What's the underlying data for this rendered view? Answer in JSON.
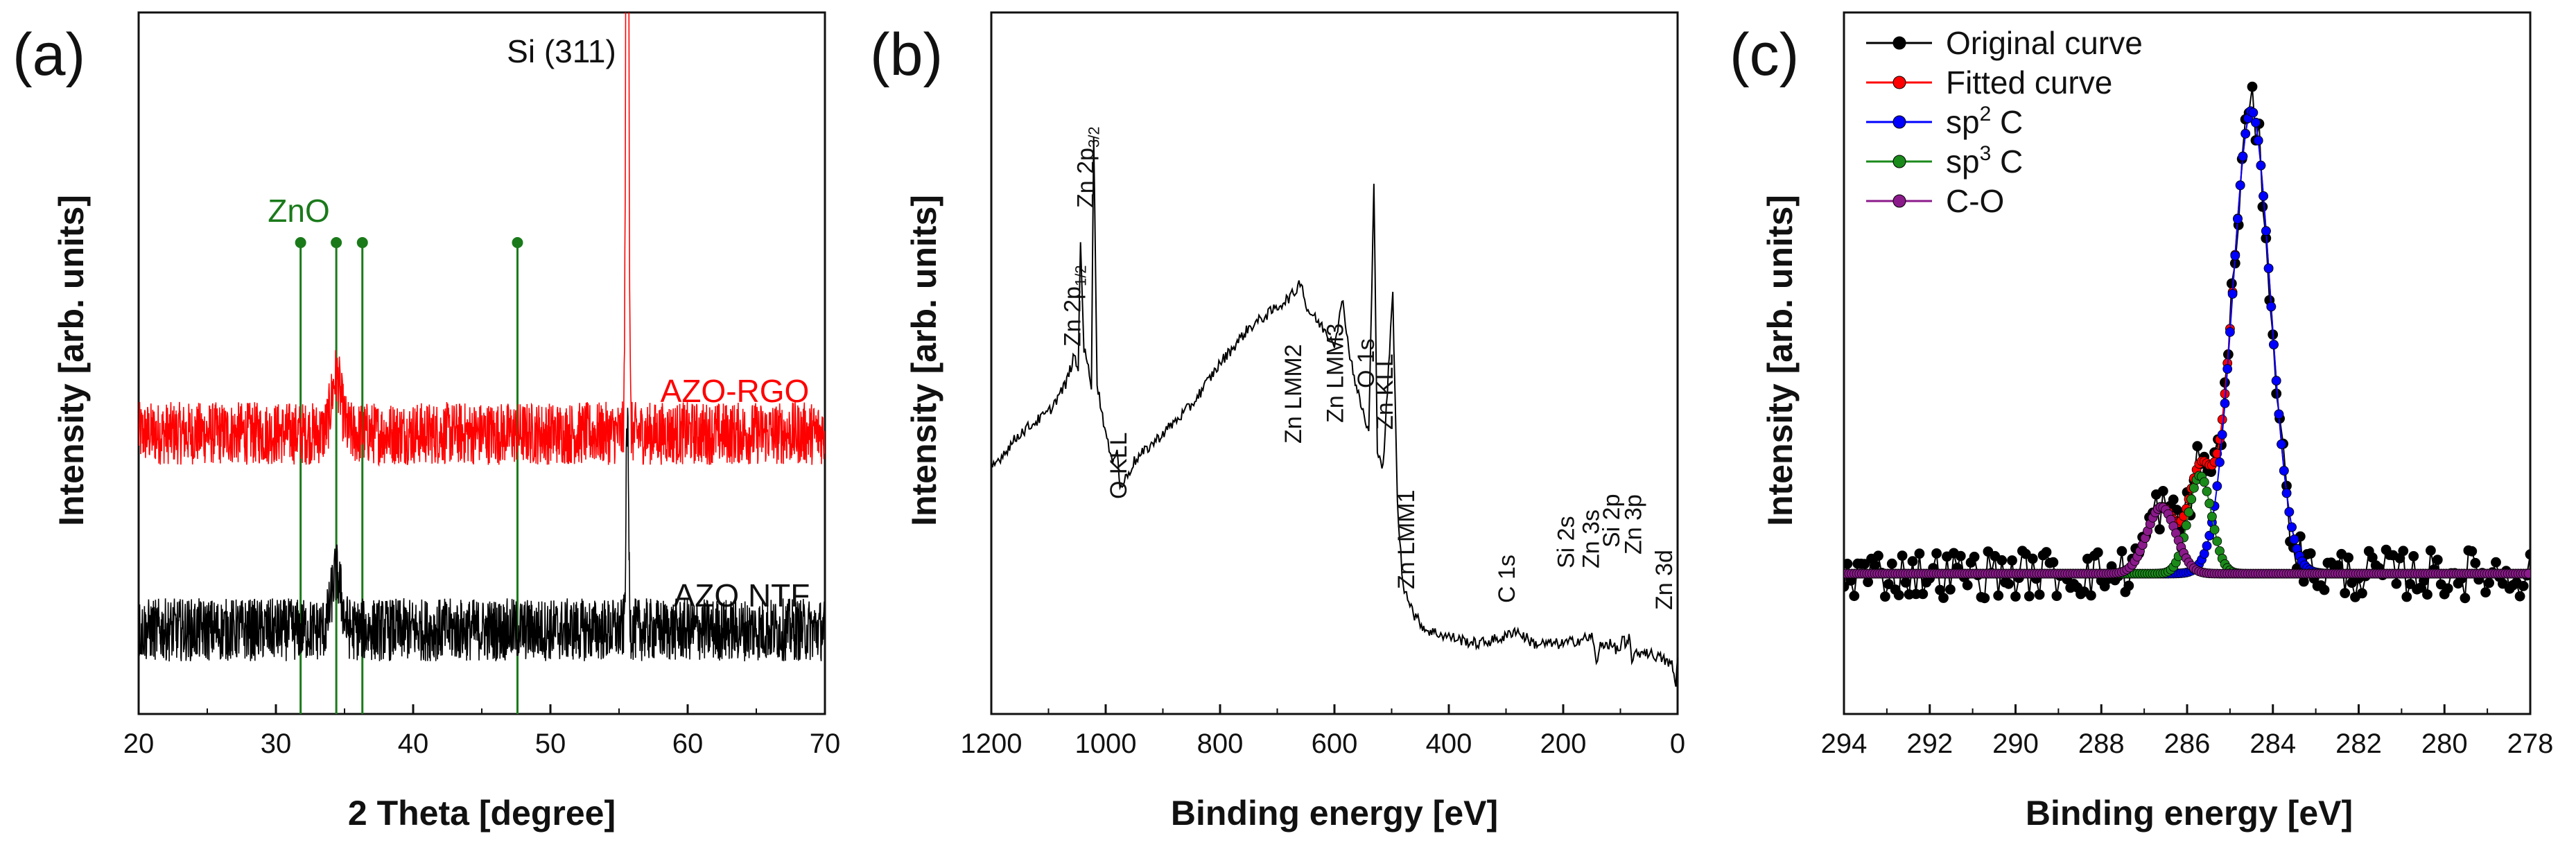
{
  "chart_data": [
    {
      "type": "line",
      "panel": "(a)",
      "xlabel": "2 Theta [degree]",
      "ylabel": "Intensity [arb. units]",
      "xlim": [
        20,
        70
      ],
      "xticks": [
        20,
        30,
        40,
        50,
        60,
        70
      ],
      "ylim": [
        0,
        100
      ],
      "series": [
        {
          "name": "AZO-RGO",
          "color": "#ff0000",
          "baseline": 40,
          "noise": 4.5,
          "peaks": [
            {
              "x": 34.4,
              "h": 8,
              "w": 0.5
            },
            {
              "x": 55.6,
              "h": 140,
              "w": 0.13
            }
          ]
        },
        {
          "name": "AZO NTF",
          "color": "#000000",
          "baseline": 12,
          "noise": 4.5,
          "peaks": [
            {
              "x": 34.4,
              "h": 8,
              "w": 0.5
            },
            {
              "x": 55.6,
              "h": 30,
              "w": 0.13
            }
          ]
        }
      ],
      "reference_lines": {
        "label": "ZnO",
        "color": "#1a7a1a",
        "positions": [
          31.8,
          34.4,
          36.3,
          47.6
        ]
      },
      "annotations": [
        {
          "text": "Si (311)",
          "x": 55.6
        },
        {
          "text": "AZO-RGO"
        },
        {
          "text": "AZO NTF"
        }
      ]
    },
    {
      "type": "line",
      "panel": "(b)",
      "xlabel": "Binding energy [eV]",
      "ylabel": "Intensity [arb. units]",
      "xlim": [
        1200,
        0
      ],
      "xticks": [
        1200,
        1000,
        800,
        600,
        400,
        200,
        0
      ],
      "ylim": [
        0,
        100
      ],
      "series": [
        {
          "name": "XPS survey",
          "color": "#000000",
          "points": [
            [
              1200,
              35
            ],
            [
              1150,
              40
            ],
            [
              1100,
              43
            ],
            [
              1070,
              47
            ],
            [
              1055,
              51
            ],
            [
              1048,
              49
            ],
            [
              1044,
              68
            ],
            [
              1038,
              52
            ],
            [
              1032,
              50
            ],
            [
              1025,
              47
            ],
            [
              1021,
              83
            ],
            [
              1015,
              47
            ],
            [
              1000,
              40
            ],
            [
              990,
              36
            ],
            [
              980,
              38
            ],
            [
              975,
              32
            ],
            [
              950,
              36
            ],
            [
              900,
              40
            ],
            [
              850,
              44
            ],
            [
              800,
              50
            ],
            [
              750,
              55
            ],
            [
              700,
              58
            ],
            [
              670,
              60
            ],
            [
              658,
              62
            ],
            [
              650,
              58
            ],
            [
              640,
              57
            ],
            [
              620,
              55
            ],
            [
              600,
              53
            ],
            [
              585,
              59
            ],
            [
              575,
              52
            ],
            [
              560,
              46
            ],
            [
              540,
              40
            ],
            [
              531,
              75
            ],
            [
              525,
              38
            ],
            [
              515,
              35
            ],
            [
              498,
              60
            ],
            [
              490,
              30
            ],
            [
              480,
              18
            ],
            [
              472,
              17
            ],
            [
              460,
              14
            ],
            [
              440,
              12
            ],
            [
              400,
              11
            ],
            [
              350,
              10
            ],
            [
              300,
              11
            ],
            [
              285,
              12
            ],
            [
              250,
              10
            ],
            [
              200,
              10
            ],
            [
              150,
              11
            ],
            [
              140,
              7
            ],
            [
              135,
              10
            ],
            [
              120,
              10
            ],
            [
              102,
              9
            ],
            [
              95,
              11
            ],
            [
              90,
              9
            ],
            [
              85,
              11
            ],
            [
              80,
              8
            ],
            [
              60,
              9
            ],
            [
              30,
              8
            ],
            [
              10,
              7
            ],
            [
              3,
              4
            ],
            [
              0,
              8
            ]
          ]
        }
      ],
      "annotations": [
        {
          "text": "Zn 2p",
          "sub": "1/2",
          "x": 1044
        },
        {
          "text": "Zn 2p",
          "sub": "3/2",
          "x": 1021
        },
        {
          "text": "O KLL",
          "x": 978
        },
        {
          "text": "Zn LMM2",
          "x": 658
        },
        {
          "text": "Zn LMM3",
          "x": 585
        },
        {
          "text": "O 1s",
          "x": 531
        },
        {
          "text": "Zn KLL",
          "x": 498
        },
        {
          "text": "Zn LMM1",
          "x": 475
        },
        {
          "text": "C 1s",
          "x": 285
        },
        {
          "text": "Si 2s",
          "x": 150
        },
        {
          "text": "Zn 3s",
          "x": 140
        },
        {
          "text": "Si 2p",
          "x": 102
        },
        {
          "text": "Zn 3p",
          "x": 88
        },
        {
          "text": "Zn 3d",
          "x": 10
        }
      ]
    },
    {
      "type": "scatter",
      "panel": "(c)",
      "xlabel": "Binding energy [eV]",
      "ylabel": "Intensity [arb. units]",
      "xlim": [
        294,
        278
      ],
      "xticks": [
        294,
        292,
        290,
        288,
        286,
        284,
        282,
        280,
        278
      ],
      "ylim": [
        0,
        100
      ],
      "baseline": 20,
      "legend_position": "top-left",
      "series": [
        {
          "name": "Original curve",
          "color": "#000000",
          "noise": 3.5,
          "components": [
            "sp2 C",
            "sp3 C",
            "C-O"
          ]
        },
        {
          "name": "Fitted curve",
          "color": "#ff0000",
          "components": [
            "sp2 C",
            "sp3 C",
            "C-O"
          ]
        },
        {
          "name": "sp2 C",
          "legend": "sp",
          "sup": "2",
          "suffix": " C",
          "color": "#0000ff",
          "peak": {
            "x": 284.5,
            "h": 66,
            "w": 0.62
          }
        },
        {
          "name": "sp3 C",
          "legend": "sp",
          "sup": "3",
          "suffix": " C",
          "color": "#1a8a1a",
          "peak": {
            "x": 285.7,
            "h": 14,
            "w": 0.38
          }
        },
        {
          "name": "C-O",
          "legend": "C-O",
          "sup": "",
          "suffix": "",
          "color": "#8b1a8b",
          "peak": {
            "x": 286.6,
            "h": 9.5,
            "w": 0.48
          }
        }
      ]
    }
  ]
}
